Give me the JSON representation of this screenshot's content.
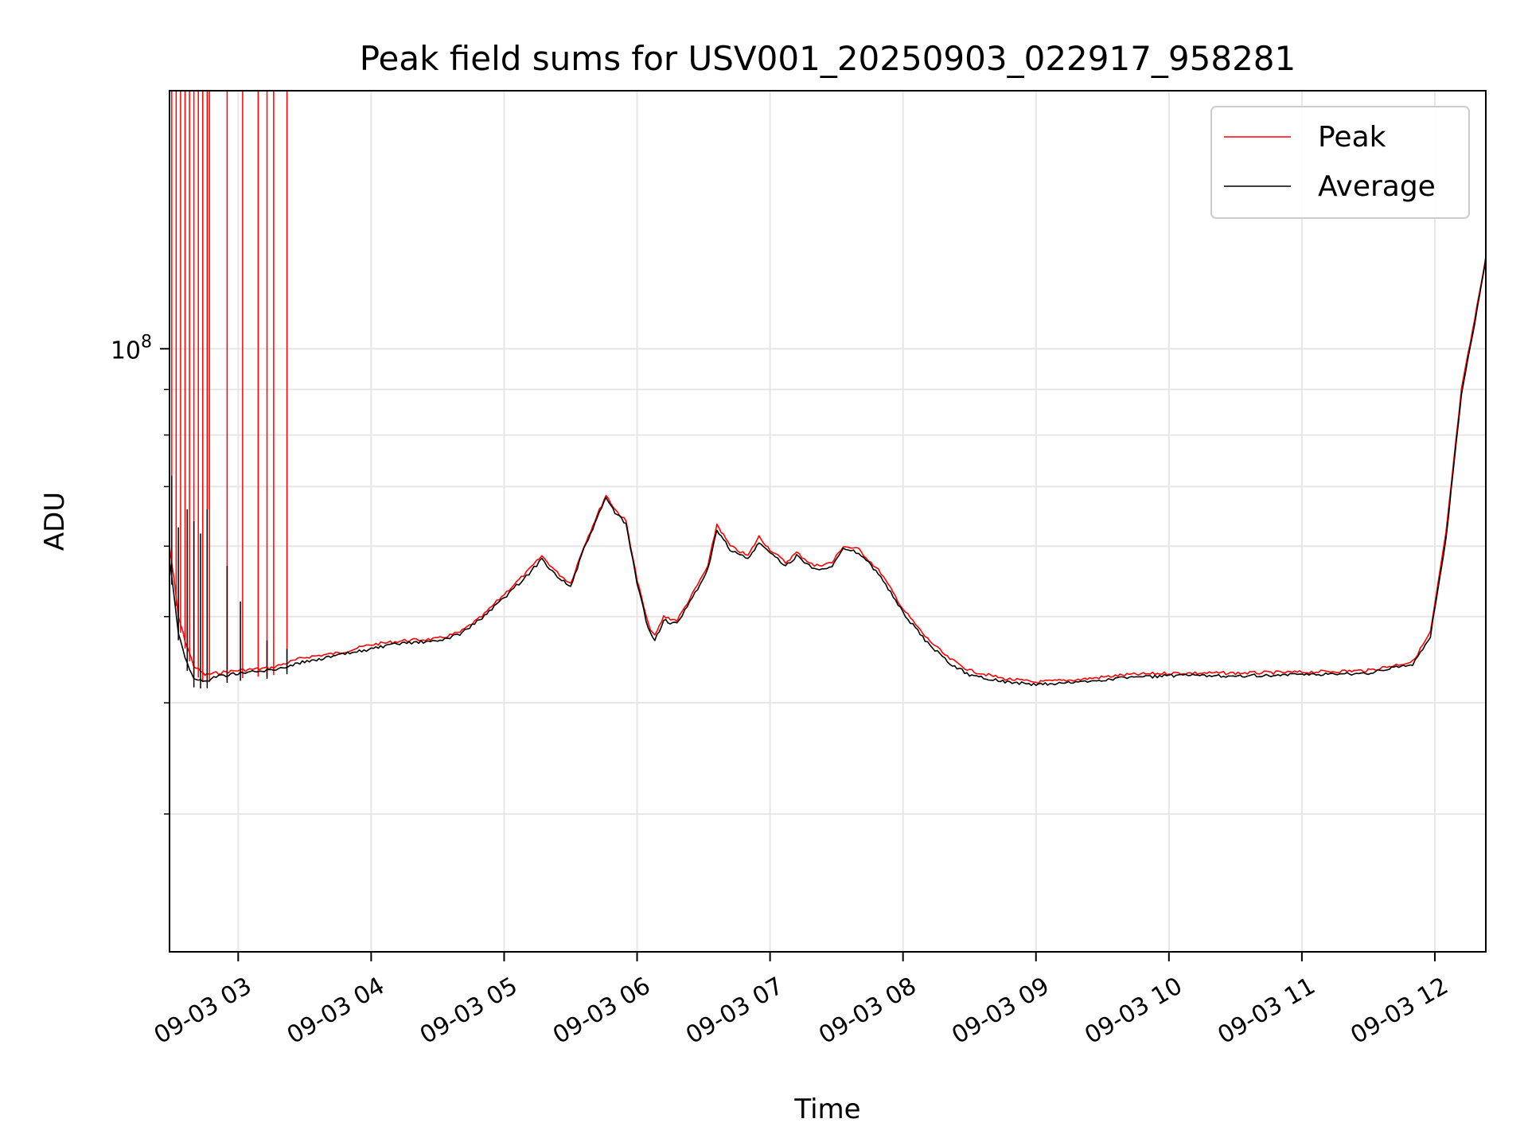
{
  "chart_data": {
    "type": "line",
    "title": "Peak field sums for USV001_20250903_022917_958281",
    "xlabel": "Time",
    "ylabel": "ADU",
    "x_scale": "time",
    "y_scale": "log",
    "xlim": [
      "2025-09-03 02:29",
      "2025-09-03 12:23"
    ],
    "ylim": [
      21000000,
      195000000
    ],
    "x_ticks": [
      {
        "t": "2025-09-03 03:00",
        "label": "09-03 03"
      },
      {
        "t": "2025-09-03 04:00",
        "label": "09-03 04"
      },
      {
        "t": "2025-09-03 05:00",
        "label": "09-03 05"
      },
      {
        "t": "2025-09-03 06:00",
        "label": "09-03 06"
      },
      {
        "t": "2025-09-03 07:00",
        "label": "09-03 07"
      },
      {
        "t": "2025-09-03 08:00",
        "label": "09-03 08"
      },
      {
        "t": "2025-09-03 09:00",
        "label": "09-03 09"
      },
      {
        "t": "2025-09-03 10:00",
        "label": "09-03 10"
      },
      {
        "t": "2025-09-03 11:00",
        "label": "09-03 11"
      },
      {
        "t": "2025-09-03 12:00",
        "label": "09-03 12"
      }
    ],
    "y_major_ticks": [
      {
        "value": 100000000,
        "base": "10",
        "exp": "8"
      }
    ],
    "y_minor_ticks": [
      30000000,
      40000000,
      50000000,
      60000000,
      70000000,
      80000000,
      90000000,
      200000000
    ],
    "grid": true,
    "legend_position": "top-right",
    "series": [
      {
        "name": "Peak",
        "color": "#ff0000",
        "points": [
          [
            "2025-09-03 02:29",
            60000000
          ],
          [
            "2025-09-03 02:31",
            55000000
          ],
          [
            "2025-09-03 02:33",
            50000000
          ],
          [
            "2025-09-03 02:36",
            47000000
          ],
          [
            "2025-09-03 02:40",
            44000000
          ],
          [
            "2025-09-03 02:45",
            43000000
          ],
          [
            "2025-09-03 02:50",
            43200000
          ],
          [
            "2025-09-03 03:00",
            43500000
          ],
          [
            "2025-09-03 03:15",
            43800000
          ],
          [
            "2025-09-03 03:30",
            45000000
          ],
          [
            "2025-09-03 03:45",
            45500000
          ],
          [
            "2025-09-03 04:00",
            46500000
          ],
          [
            "2025-09-03 04:15",
            47000000
          ],
          [
            "2025-09-03 04:30",
            47200000
          ],
          [
            "2025-09-03 04:40",
            48000000
          ],
          [
            "2025-09-03 04:50",
            50000000
          ],
          [
            "2025-09-03 05:00",
            53000000
          ],
          [
            "2025-09-03 05:10",
            56000000
          ],
          [
            "2025-09-03 05:17",
            58500000
          ],
          [
            "2025-09-03 05:24",
            56000000
          ],
          [
            "2025-09-03 05:30",
            54500000
          ],
          [
            "2025-09-03 05:36",
            60000000
          ],
          [
            "2025-09-03 05:42",
            65000000
          ],
          [
            "2025-09-03 05:46",
            68500000
          ],
          [
            "2025-09-03 05:50",
            66000000
          ],
          [
            "2025-09-03 05:55",
            64000000
          ],
          [
            "2025-09-03 06:00",
            55000000
          ],
          [
            "2025-09-03 06:05",
            49000000
          ],
          [
            "2025-09-03 06:08",
            47500000
          ],
          [
            "2025-09-03 06:12",
            50000000
          ],
          [
            "2025-09-03 06:18",
            49500000
          ],
          [
            "2025-09-03 06:25",
            53000000
          ],
          [
            "2025-09-03 06:32",
            57000000
          ],
          [
            "2025-09-03 06:36",
            63500000
          ],
          [
            "2025-09-03 06:42",
            60000000
          ],
          [
            "2025-09-03 06:50",
            58500000
          ],
          [
            "2025-09-03 06:55",
            61500000
          ],
          [
            "2025-09-03 07:00",
            59500000
          ],
          [
            "2025-09-03 07:07",
            57500000
          ],
          [
            "2025-09-03 07:12",
            59000000
          ],
          [
            "2025-09-03 07:20",
            57000000
          ],
          [
            "2025-09-03 07:28",
            57500000
          ],
          [
            "2025-09-03 07:33",
            60000000
          ],
          [
            "2025-09-03 07:40",
            59500000
          ],
          [
            "2025-09-03 07:50",
            56000000
          ],
          [
            "2025-09-03 08:00",
            51000000
          ],
          [
            "2025-09-03 08:10",
            47500000
          ],
          [
            "2025-09-03 08:20",
            45000000
          ],
          [
            "2025-09-03 08:30",
            43500000
          ],
          [
            "2025-09-03 08:45",
            42600000
          ],
          [
            "2025-09-03 09:00",
            42200000
          ],
          [
            "2025-09-03 09:20",
            42500000
          ],
          [
            "2025-09-03 09:40",
            43000000
          ],
          [
            "2025-09-03 10:00",
            43200000
          ],
          [
            "2025-09-03 10:30",
            43200000
          ],
          [
            "2025-09-03 11:00",
            43300000
          ],
          [
            "2025-09-03 11:30",
            43500000
          ],
          [
            "2025-09-03 11:50",
            44500000
          ],
          [
            "2025-09-03 11:58",
            48000000
          ],
          [
            "2025-09-03 12:05",
            62000000
          ],
          [
            "2025-09-03 12:12",
            90000000
          ],
          [
            "2025-09-03 12:18",
            108000000
          ],
          [
            "2025-09-03 12:23",
            127000000
          ]
        ],
        "spikes": [
          "2025-09-03 02:30",
          "2025-09-03 02:32",
          "2025-09-03 02:34",
          "2025-09-03 02:36",
          "2025-09-03 02:38",
          "2025-09-03 02:40",
          "2025-09-03 02:42",
          "2025-09-03 02:44",
          "2025-09-03 02:46",
          "2025-09-03 02:47",
          "2025-09-03 02:55",
          "2025-09-03 03:02",
          "2025-09-03 03:09",
          "2025-09-03 03:13",
          "2025-09-03 03:16",
          "2025-09-03 03:22"
        ]
      },
      {
        "name": "Average",
        "color": "#000000",
        "points": [
          [
            "2025-09-03 02:29",
            58000000
          ],
          [
            "2025-09-03 02:31",
            53000000
          ],
          [
            "2025-09-03 02:33",
            48000000
          ],
          [
            "2025-09-03 02:36",
            45000000
          ],
          [
            "2025-09-03 02:40",
            42500000
          ],
          [
            "2025-09-03 02:45",
            42300000
          ],
          [
            "2025-09-03 02:50",
            42800000
          ],
          [
            "2025-09-03 03:00",
            43200000
          ],
          [
            "2025-09-03 03:15",
            43500000
          ],
          [
            "2025-09-03 03:30",
            44500000
          ],
          [
            "2025-09-03 03:45",
            45200000
          ],
          [
            "2025-09-03 04:00",
            46000000
          ],
          [
            "2025-09-03 04:15",
            46700000
          ],
          [
            "2025-09-03 04:30",
            46900000
          ],
          [
            "2025-09-03 04:40",
            47800000
          ],
          [
            "2025-09-03 04:50",
            49800000
          ],
          [
            "2025-09-03 05:00",
            52500000
          ],
          [
            "2025-09-03 05:10",
            55500000
          ],
          [
            "2025-09-03 05:17",
            58000000
          ],
          [
            "2025-09-03 05:24",
            55500000
          ],
          [
            "2025-09-03 05:30",
            54000000
          ],
          [
            "2025-09-03 05:36",
            59500000
          ],
          [
            "2025-09-03 05:42",
            64500000
          ],
          [
            "2025-09-03 05:46",
            68000000
          ],
          [
            "2025-09-03 05:50",
            65500000
          ],
          [
            "2025-09-03 05:55",
            63500000
          ],
          [
            "2025-09-03 06:00",
            54500000
          ],
          [
            "2025-09-03 06:05",
            48500000
          ],
          [
            "2025-09-03 06:08",
            47000000
          ],
          [
            "2025-09-03 06:12",
            49500000
          ],
          [
            "2025-09-03 06:18",
            49000000
          ],
          [
            "2025-09-03 06:25",
            52500000
          ],
          [
            "2025-09-03 06:32",
            56500000
          ],
          [
            "2025-09-03 06:36",
            62500000
          ],
          [
            "2025-09-03 06:42",
            59500000
          ],
          [
            "2025-09-03 06:50",
            58000000
          ],
          [
            "2025-09-03 06:55",
            60500000
          ],
          [
            "2025-09-03 07:00",
            59000000
          ],
          [
            "2025-09-03 07:07",
            57000000
          ],
          [
            "2025-09-03 07:12",
            58500000
          ],
          [
            "2025-09-03 07:20",
            56500000
          ],
          [
            "2025-09-03 07:28",
            57000000
          ],
          [
            "2025-09-03 07:33",
            59500000
          ],
          [
            "2025-09-03 07:40",
            59000000
          ],
          [
            "2025-09-03 07:50",
            55500000
          ],
          [
            "2025-09-03 08:00",
            50500000
          ],
          [
            "2025-09-03 08:10",
            47000000
          ],
          [
            "2025-09-03 08:20",
            44500000
          ],
          [
            "2025-09-03 08:30",
            43000000
          ],
          [
            "2025-09-03 08:45",
            42300000
          ],
          [
            "2025-09-03 09:00",
            41900000
          ],
          [
            "2025-09-03 09:20",
            42200000
          ],
          [
            "2025-09-03 09:40",
            42700000
          ],
          [
            "2025-09-03 10:00",
            42900000
          ],
          [
            "2025-09-03 10:30",
            42900000
          ],
          [
            "2025-09-03 11:00",
            43000000
          ],
          [
            "2025-09-03 11:30",
            43200000
          ],
          [
            "2025-09-03 11:50",
            44200000
          ],
          [
            "2025-09-03 11:58",
            47500000
          ],
          [
            "2025-09-03 12:05",
            61000000
          ],
          [
            "2025-09-03 12:12",
            89000000
          ],
          [
            "2025-09-03 12:18",
            107000000
          ],
          [
            "2025-09-03 12:23",
            126000000
          ]
        ],
        "spikes": [
          [
            "2025-09-03 02:30",
            72000000
          ],
          [
            "2025-09-03 02:33",
            63000000
          ],
          [
            "2025-09-03 02:37",
            66000000
          ],
          [
            "2025-09-03 02:40",
            64000000
          ],
          [
            "2025-09-03 02:43",
            62000000
          ],
          [
            "2025-09-03 02:46",
            66000000
          ],
          [
            "2025-09-03 02:55",
            57000000
          ],
          [
            "2025-09-03 03:01",
            52000000
          ],
          [
            "2025-09-03 03:13",
            47000000
          ],
          [
            "2025-09-03 03:22",
            46000000
          ]
        ]
      }
    ]
  }
}
